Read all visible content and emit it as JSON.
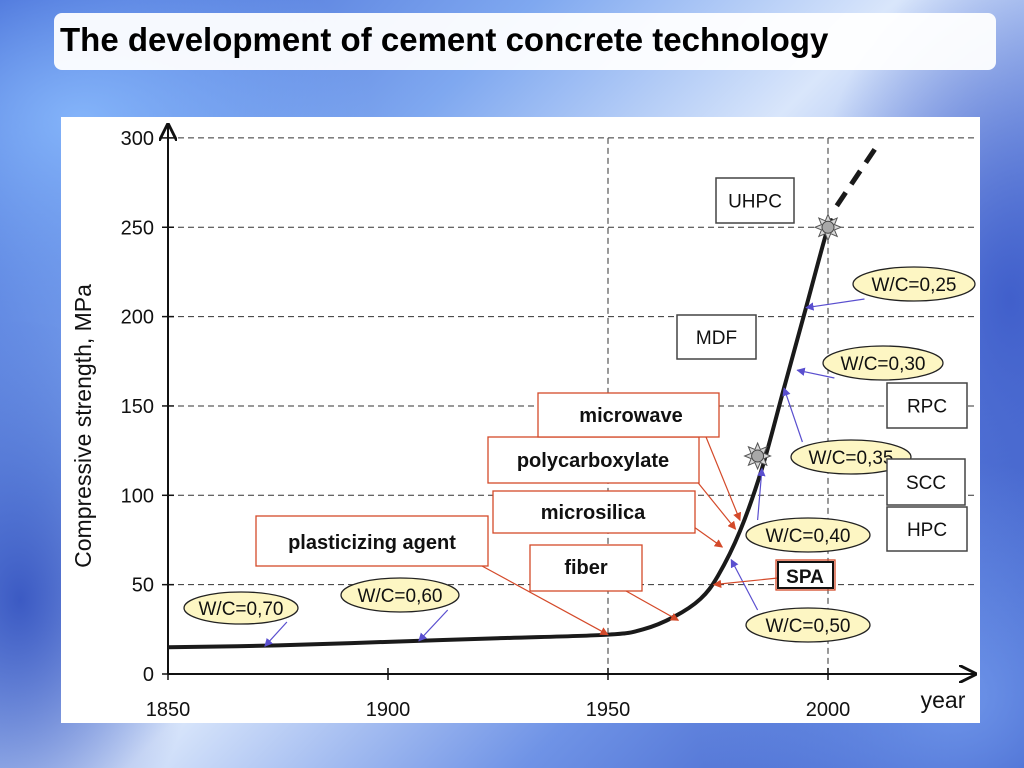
{
  "title": "The development of cement concrete technology",
  "colors": {
    "curve": "#1a1a1a",
    "grid": "#333333",
    "ellipse_fill": "#fdf6c3",
    "arrow": "#5a4fcf",
    "callout_border": "#d44a2a"
  },
  "chart_data": {
    "type": "line",
    "ylabel": "Compressive strength, MPa",
    "xlabel": "year",
    "xlim": [
      1850,
      2010
    ],
    "ylim": [
      0,
      300
    ],
    "x_ticks": [
      1850,
      1900,
      1950,
      2000
    ],
    "y_ticks": [
      0,
      50,
      100,
      150,
      200,
      250,
      300
    ],
    "grid": "horizontal dashed",
    "series": [
      {
        "values": [
          [
            1850,
            15
          ],
          [
            1875,
            16
          ],
          [
            1900,
            18
          ],
          [
            1925,
            20
          ],
          [
            1950,
            22
          ],
          [
            1958,
            25
          ],
          [
            1965,
            32
          ],
          [
            1971,
            42
          ],
          [
            1975,
            55
          ],
          [
            1980,
            80
          ],
          [
            1985,
            115
          ],
          [
            1990,
            160
          ],
          [
            1995,
            205
          ],
          [
            2000,
            250
          ],
          [
            2001,
            252
          ]
        ]
      }
    ],
    "extrapolation": [
      [
        2002,
        262
      ],
      [
        2011,
        295
      ]
    ],
    "wc_labels": [
      {
        "text": "W/C=0,70",
        "point": [
          1872,
          15.5
        ]
      },
      {
        "text": "W/C=0,60",
        "point": [
          1907,
          18.5
        ]
      },
      {
        "text": "W/C=0,50",
        "point": [
          1978,
          64
        ]
      },
      {
        "text": "W/C=0,40",
        "point": [
          1985,
          115
        ]
      },
      {
        "text": "W/C=0,35",
        "point": [
          1990,
          160
        ]
      },
      {
        "text": "W/C=0,30",
        "point": [
          1993,
          170
        ]
      },
      {
        "text": "W/C=0,25",
        "point": [
          1995,
          205
        ]
      }
    ],
    "technology_labels": [
      {
        "text": "plasticizing agent",
        "point": [
          1950,
          22
        ]
      },
      {
        "text": "fiber",
        "point": [
          1966,
          30
        ]
      },
      {
        "text": "microsilica",
        "point": [
          1976,
          71
        ]
      },
      {
        "text": "polycarboxylate",
        "point": [
          1979,
          81
        ]
      },
      {
        "text": "microwave",
        "point": [
          1980,
          86
        ]
      },
      {
        "text": "SPA",
        "point": [
          1974,
          50
        ]
      }
    ],
    "concrete_types": [
      "UHPC",
      "MDF",
      "RPC",
      "SCC",
      "HPC"
    ],
    "markers": [
      [
        1984,
        122
      ],
      [
        2000,
        250
      ]
    ]
  }
}
